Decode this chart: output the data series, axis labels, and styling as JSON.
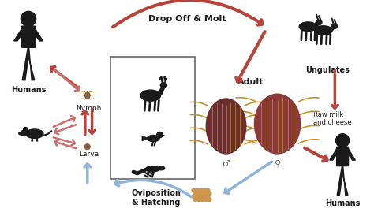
{
  "background_color": "#ffffff",
  "labels": {
    "humans_left": "Humans",
    "nymph": "Nymph",
    "larva": "Larva",
    "adult": "Adult",
    "ungulates": "Ungulates",
    "raw_milk": "Raw milk\nand cheese",
    "humans_right": "Humans",
    "drop_off": "Drop Off & Molt",
    "oviposition": "Oviposition\n& Hatching",
    "male_symbol": "♂",
    "female_symbol": "♀"
  },
  "arrow_color_red": "#b5453a",
  "arrow_color_blue": "#8fb4d9",
  "arrow_color_pink": "#c87070",
  "human_color": "#1a1a1a",
  "animal_color": "#1a1a1a",
  "text_color": "#1a1a1a",
  "nymph_body_color": "#8b5e3c",
  "nymph_leg_color": "#c8902a",
  "tick_dark": "#6b2e2e",
  "tick_medium": "#8b3a3a",
  "tick_leg_color": "#c8902a",
  "egg_color": "#c8842a",
  "font_size": 7,
  "font_size_small": 6
}
